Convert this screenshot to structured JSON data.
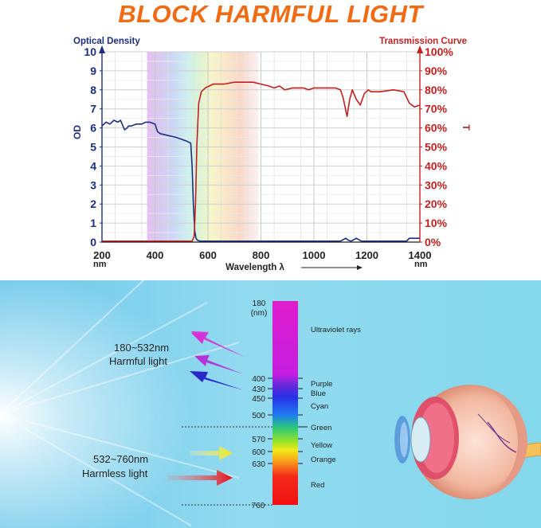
{
  "title": "BLOCK HARMFUL LIGHT",
  "colors": {
    "title": "#f26a12",
    "od_axis": "#1c2d86",
    "transmission_axis": "#c81e1e",
    "panel_bg": "#8fd6ee"
  },
  "chart_data": {
    "type": "line",
    "xlabel": "Wavelength λ",
    "x_unit": "nm",
    "xlim": [
      200,
      1400
    ],
    "x_ticks": [
      "200",
      "400",
      "600",
      "800",
      "1000",
      "1200",
      "1400"
    ],
    "left_axis": {
      "label": "OD",
      "title": "Optical Density",
      "lim": [
        0,
        10
      ],
      "ticks": [
        "0",
        "1",
        "2",
        "3",
        "4",
        "5",
        "6",
        "7",
        "8",
        "9",
        "10"
      ]
    },
    "right_axis": {
      "label": "T",
      "title": "Transmission Curve",
      "lim": [
        0,
        100
      ],
      "ticks": [
        "0%",
        "10%",
        "20%",
        "30%",
        "40%",
        "50%",
        "60%",
        "70%",
        "80%",
        "90%",
        "100%"
      ]
    },
    "grid": true,
    "spectrum_band": [
      370,
      790
    ],
    "series": [
      {
        "name": "OD",
        "axis": "left",
        "color": "#1c2d86",
        "x": [
          200,
          215,
          230,
          245,
          260,
          270,
          285,
          295,
          300,
          310,
          330,
          350,
          365,
          380,
          400,
          410,
          420,
          450,
          480,
          500,
          520,
          535,
          540,
          545,
          550,
          555,
          560,
          570,
          600,
          700,
          800,
          900,
          1000,
          1100,
          1120,
          1130,
          1140,
          1160,
          1180,
          1200,
          1300,
          1350,
          1360,
          1400
        ],
        "y": [
          6.1,
          6.3,
          6.2,
          6.4,
          6.3,
          6.4,
          5.9,
          6.0,
          6.1,
          6.1,
          6.2,
          6.2,
          6.3,
          6.3,
          6.2,
          5.8,
          5.7,
          5.6,
          5.5,
          5.4,
          5.3,
          5.2,
          4.0,
          2.0,
          0.6,
          0.2,
          0.1,
          0.05,
          0.05,
          0.05,
          0.05,
          0.05,
          0.05,
          0.05,
          0.2,
          0.1,
          0.05,
          0.2,
          0.05,
          0.05,
          0.05,
          0.05,
          0.2,
          0.2
        ]
      },
      {
        "name": "T",
        "axis": "right",
        "color": "#c81e1e",
        "x": [
          200,
          300,
          400,
          500,
          540,
          548,
          553,
          558,
          565,
          575,
          590,
          620,
          660,
          700,
          740,
          770,
          800,
          830,
          850,
          870,
          890,
          920,
          960,
          980,
          1000,
          1050,
          1080,
          1100,
          1110,
          1125,
          1135,
          1145,
          1160,
          1175,
          1190,
          1205,
          1215,
          1250,
          1300,
          1340,
          1360,
          1380,
          1400
        ],
        "y": [
          0.5,
          0.5,
          0.5,
          0.5,
          0.5,
          3,
          20,
          50,
          73,
          79,
          81,
          83,
          83,
          84,
          84,
          84,
          83,
          82,
          81,
          82,
          80,
          81,
          81,
          80,
          81,
          81,
          81,
          80,
          76,
          66,
          75,
          80,
          75,
          72,
          78,
          80,
          79,
          79,
          80,
          79,
          73,
          71,
          72
        ]
      }
    ]
  },
  "spectrum_panel": {
    "harmful_range": "180~532nm",
    "harmful_label": "Harmful light",
    "harmless_range": "532~760nm",
    "harmless_label": "Harmless light",
    "scale_top_value": "180",
    "scale_top_unit": "(nm)",
    "scale_bottom_value": "760",
    "ticks": [
      "400",
      "430",
      "450",
      "500",
      "570",
      "600",
      "630"
    ],
    "bands": [
      "Ultraviolet rays",
      "Purple",
      "Blue",
      "Cyan",
      "Green",
      "Yellow",
      "Orange",
      "Red"
    ]
  }
}
